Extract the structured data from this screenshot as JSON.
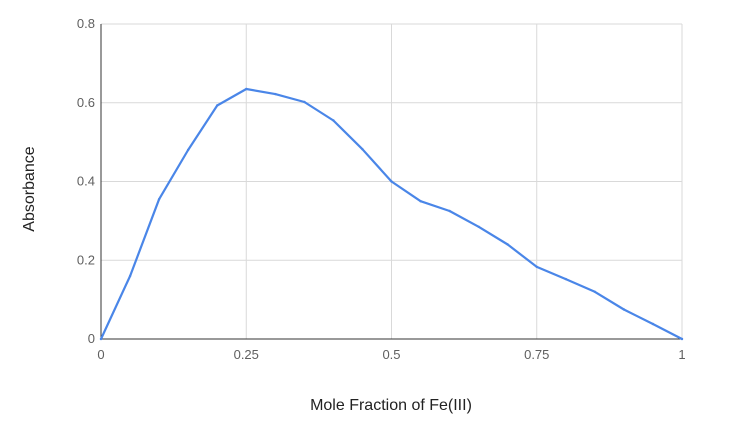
{
  "chart_data": {
    "type": "line",
    "title": "",
    "xlabel": "Mole Fraction of Fe(III)",
    "ylabel": "Absorbance",
    "xlim": [
      0,
      1
    ],
    "ylim": [
      0,
      0.8
    ],
    "x_ticks": [
      0,
      0.25,
      0.5,
      0.75,
      1
    ],
    "x_tick_labels": [
      "0",
      "0.25",
      "0.5",
      "0.75",
      "1"
    ],
    "y_ticks": [
      0,
      0.2,
      0.4,
      0.6,
      0.8
    ],
    "y_tick_labels": [
      "0",
      "0.2",
      "0.4",
      "0.6",
      "0.8"
    ],
    "grid": true,
    "legend": "none",
    "series": [
      {
        "color": "#4a86e8",
        "x": [
          0,
          0.05,
          0.1,
          0.15,
          0.2,
          0.25,
          0.3,
          0.35,
          0.4,
          0.45,
          0.5,
          0.55,
          0.6,
          0.65,
          0.7,
          0.75,
          0.8,
          0.85,
          0.9,
          0.95,
          1
        ],
        "y": [
          0,
          0.16,
          0.355,
          0.48,
          0.593,
          0.635,
          0.622,
          0.602,
          0.555,
          0.482,
          0.4,
          0.35,
          0.325,
          0.285,
          0.24,
          0.183,
          0.152,
          0.12,
          0.075,
          0.038,
          0
        ]
      }
    ]
  }
}
